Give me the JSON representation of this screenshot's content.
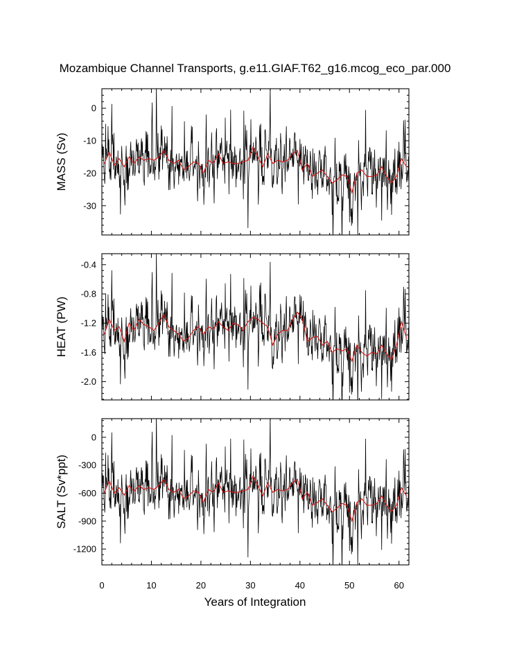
{
  "chart_data": {
    "type": "line",
    "title": "Mozambique Channel Transports, g.e11.GIAF.T62_g16.mcog_eco_par.000",
    "xlabel": "Years of Integration",
    "xlim": [
      0,
      62
    ],
    "xticks": [
      0,
      10,
      20,
      30,
      40,
      50,
      60
    ],
    "xtick_labels": [
      "0",
      "10",
      "20",
      "30",
      "40",
      "50",
      "60"
    ],
    "line_colors": {
      "monthly": "#000000",
      "annual": "#d21414"
    },
    "panels": [
      {
        "ylabel": "MASS (Sv)",
        "ylim": [
          -39,
          6
        ],
        "yticks": [
          0,
          -10,
          -20,
          -30
        ],
        "ytick_labels": [
          "0",
          "-10",
          "-20",
          "-30"
        ],
        "annual": {
          "x": [
            0.5,
            1.5,
            2.5,
            3.5,
            4.5,
            5.5,
            6.5,
            7.5,
            8.5,
            9.5,
            10.5,
            11.5,
            12.5,
            13.5,
            14.5,
            15.5,
            16.5,
            17.5,
            18.5,
            19.5,
            20.5,
            21.5,
            22.5,
            23.5,
            24.5,
            25.5,
            26.5,
            27.5,
            28.5,
            29.5,
            30.5,
            31.5,
            32.5,
            33.5,
            34.5,
            35.5,
            36.5,
            37.5,
            38.5,
            39.5,
            40.5,
            41.5,
            42.5,
            43.5,
            44.5,
            45.5,
            46.5,
            47.5,
            48.5,
            49.5,
            50.5,
            51.5,
            52.5,
            53.5,
            54.5,
            55.5,
            56.5,
            57.5,
            58.5,
            59.5,
            60.5,
            61.5
          ],
          "values": [
            -17,
            -13.5,
            -17.5,
            -15.5,
            -18,
            -15,
            -17,
            -15,
            -16,
            -15.5,
            -16,
            -15,
            -13,
            -16,
            -17,
            -16,
            -19,
            -18,
            -16.5,
            -17,
            -20,
            -16,
            -17,
            -14,
            -17,
            -16.5,
            -17,
            -17,
            -16.5,
            -16,
            -12,
            -15,
            -18,
            -14,
            -17,
            -16,
            -16.5,
            -16,
            -14,
            -13,
            -19,
            -17,
            -21,
            -20,
            -19,
            -21,
            -23,
            -22,
            -20.5,
            -21,
            -26,
            -20,
            -19,
            -21,
            -21,
            -20.5,
            -18,
            -21,
            -23,
            -21,
            -15.5,
            -18
          ]
        }
      },
      {
        "ylabel": "HEAT (PW)",
        "ylim": [
          -2.25,
          -0.25
        ],
        "yticks": [
          -0.4,
          -0.8,
          -1.2,
          -1.6,
          -2.0
        ],
        "ytick_labels": [
          "-0.4",
          "-0.8",
          "-1.2",
          "-1.6",
          "-2.0"
        ],
        "annual": {
          "x": [
            0.5,
            1.5,
            2.5,
            3.5,
            4.5,
            5.5,
            6.5,
            7.5,
            8.5,
            9.5,
            10.5,
            11.5,
            12.5,
            13.5,
            14.5,
            15.5,
            16.5,
            17.5,
            18.5,
            19.5,
            20.5,
            21.5,
            22.5,
            23.5,
            24.5,
            25.5,
            26.5,
            27.5,
            28.5,
            29.5,
            30.5,
            31.5,
            32.5,
            33.5,
            34.5,
            35.5,
            36.5,
            37.5,
            38.5,
            39.5,
            40.5,
            41.5,
            42.5,
            43.5,
            44.5,
            45.5,
            46.5,
            47.5,
            48.5,
            49.5,
            50.5,
            51.5,
            52.5,
            53.5,
            54.5,
            55.5,
            56.5,
            57.5,
            58.5,
            59.5,
            60.5,
            61.5
          ],
          "values": [
            -1.35,
            -1.15,
            -1.3,
            -1.25,
            -1.45,
            -1.2,
            -1.3,
            -1.15,
            -1.22,
            -1.25,
            -1.3,
            -1.2,
            -1.08,
            -1.25,
            -1.3,
            -1.35,
            -1.45,
            -1.4,
            -1.3,
            -1.25,
            -1.35,
            -1.25,
            -1.28,
            -1.18,
            -1.25,
            -1.3,
            -1.2,
            -1.22,
            -1.3,
            -1.18,
            -1.12,
            -1.15,
            -1.2,
            -1.25,
            -1.5,
            -1.35,
            -1.3,
            -1.3,
            -1.15,
            -1.05,
            -1.15,
            -1.45,
            -1.4,
            -1.38,
            -1.5,
            -1.45,
            -1.6,
            -1.55,
            -1.58,
            -1.55,
            -1.72,
            -1.5,
            -1.6,
            -1.65,
            -1.6,
            -1.62,
            -1.5,
            -1.62,
            -1.7,
            -1.5,
            -1.18,
            -1.4
          ]
        }
      },
      {
        "ylabel": "SALT (Sv*ppt)",
        "ylim": [
          -1370,
          200
        ],
        "yticks": [
          0,
          -300,
          -600,
          -900,
          -1200
        ],
        "ytick_labels": [
          "0",
          "-300",
          "-600",
          "-900",
          "-1200"
        ],
        "annual": {
          "x": [
            0.5,
            1.5,
            2.5,
            3.5,
            4.5,
            5.5,
            6.5,
            7.5,
            8.5,
            9.5,
            10.5,
            11.5,
            12.5,
            13.5,
            14.5,
            15.5,
            16.5,
            17.5,
            18.5,
            19.5,
            20.5,
            21.5,
            22.5,
            23.5,
            24.5,
            25.5,
            26.5,
            27.5,
            28.5,
            29.5,
            30.5,
            31.5,
            32.5,
            33.5,
            34.5,
            35.5,
            36.5,
            37.5,
            38.5,
            39.5,
            40.5,
            41.5,
            42.5,
            43.5,
            44.5,
            45.5,
            46.5,
            47.5,
            48.5,
            49.5,
            50.5,
            51.5,
            52.5,
            53.5,
            54.5,
            55.5,
            56.5,
            57.5,
            58.5,
            59.5,
            60.5,
            61.5
          ],
          "values": [
            -590,
            -470,
            -600,
            -540,
            -620,
            -520,
            -580,
            -520,
            -560,
            -540,
            -560,
            -520,
            -450,
            -560,
            -590,
            -560,
            -660,
            -630,
            -575,
            -590,
            -700,
            -560,
            -590,
            -490,
            -590,
            -575,
            -590,
            -590,
            -575,
            -560,
            -420,
            -520,
            -630,
            -490,
            -590,
            -560,
            -575,
            -560,
            -490,
            -450,
            -660,
            -590,
            -730,
            -700,
            -660,
            -730,
            -800,
            -760,
            -710,
            -730,
            -900,
            -700,
            -660,
            -730,
            -730,
            -710,
            -630,
            -730,
            -800,
            -730,
            -540,
            -630
          ]
        }
      }
    ]
  }
}
